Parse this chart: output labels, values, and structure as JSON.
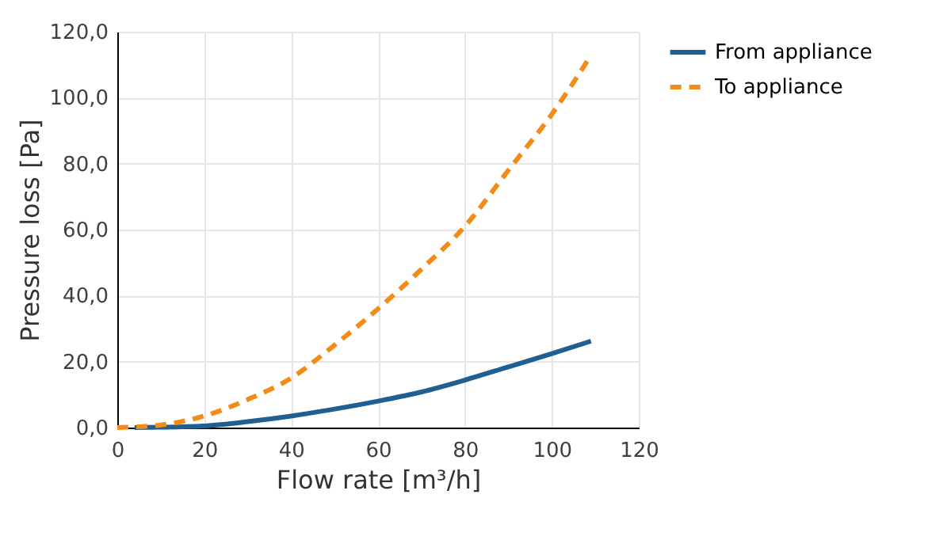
{
  "chart_data": {
    "type": "line",
    "xlabel": "Flow rate [m³/h]",
    "ylabel": "Pressure loss [Pa]",
    "xlim": [
      0,
      120
    ],
    "xticks": [
      0,
      20,
      40,
      60,
      80,
      100,
      120
    ],
    "ylim": [
      0,
      120
    ],
    "yticks": [
      {
        "value": 0,
        "label": "0,0"
      },
      {
        "value": 20,
        "label": "20,0"
      },
      {
        "value": 40,
        "label": "40,0"
      },
      {
        "value": 60,
        "label": "60,0"
      },
      {
        "value": 80,
        "label": "80,0"
      },
      {
        "value": 100,
        "label": "100,0"
      },
      {
        "value": 120,
        "label": "120,0"
      }
    ],
    "grid": true,
    "legend": "right",
    "series": [
      {
        "name": "From appliance",
        "color": "#1f5f91",
        "line_style": "solid",
        "x": [
          4,
          10,
          20,
          30,
          40,
          50,
          60,
          70,
          80,
          90,
          100,
          109
        ],
        "values": [
          0,
          0.1,
          0.5,
          1.8,
          3.5,
          5.6,
          8,
          10.8,
          14.4,
          18.4,
          22.4,
          26.2
        ]
      },
      {
        "name": "To appliance",
        "color": "#f28c16",
        "line_style": "dashed",
        "x": [
          0,
          10,
          20,
          30,
          40,
          50,
          60,
          70,
          80,
          90,
          100,
          109
        ],
        "values": [
          0,
          0.8,
          3.5,
          8.5,
          15,
          25,
          36,
          48,
          61,
          78,
          95,
          112.8
        ]
      }
    ]
  }
}
